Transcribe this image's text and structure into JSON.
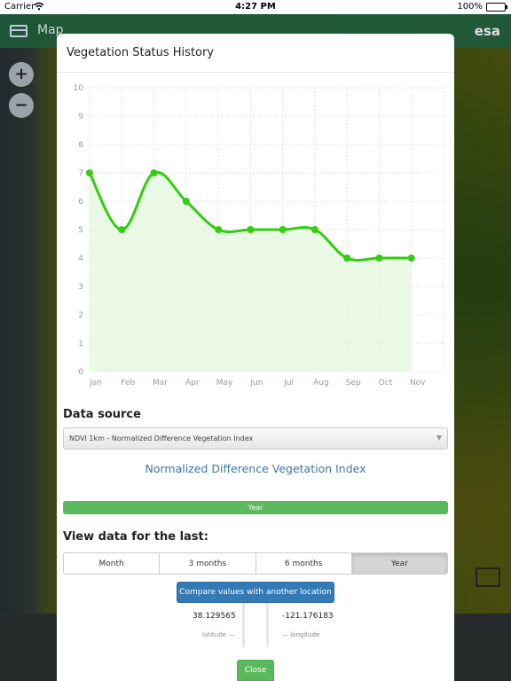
{
  "status_bar": {
    "carrier": "Carrier",
    "time": "4:27 PM",
    "battery": "100%"
  },
  "app": {
    "title": "Map",
    "brand": "esa",
    "zoom_in": "+",
    "zoom_out": "−"
  },
  "modal": {
    "title": "Vegetation Status History",
    "data_source_heading": "Data source",
    "data_source_selected": "NDVI 1km - Normalized Difference Vegetation Index",
    "index_title": "Normalized Difference Vegetation Index",
    "progress_label": "Year",
    "view_heading": "View data for the last:",
    "periods": [
      "Month",
      "3 months",
      "6 months",
      "Year"
    ],
    "selected_period": "Year",
    "compare_button": "Compare values with another location",
    "latitude_value": "38.129565",
    "latitude_label": "latitude —",
    "longitude_value": "-121.176183",
    "longitude_label": "— longitude",
    "close_button": "Close"
  },
  "chart_data": {
    "type": "area",
    "categories": [
      "Jan",
      "Feb",
      "Mar",
      "Apr",
      "May",
      "Jun",
      "Jul",
      "Aug",
      "Sep",
      "Oct",
      "Nov"
    ],
    "series": [
      {
        "values": [
          7,
          5,
          7,
          6,
          5,
          5,
          5,
          5,
          4,
          4,
          4
        ]
      }
    ],
    "ylim": [
      0,
      10
    ],
    "yticks": [
      0,
      1,
      2,
      3,
      4,
      5,
      6,
      7,
      8,
      9,
      10
    ],
    "grid": true,
    "line_color": "#33cc11",
    "fill_color": "#e6f8e0"
  }
}
